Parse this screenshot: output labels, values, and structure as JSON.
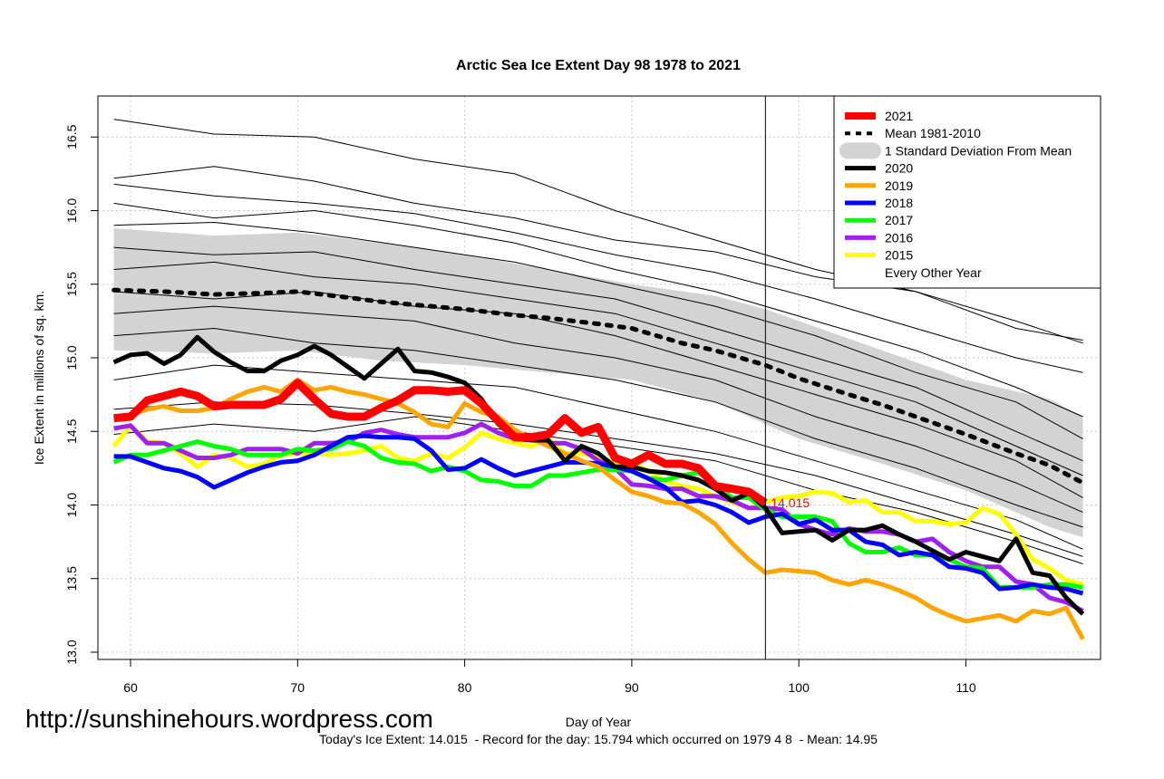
{
  "chart_data": {
    "type": "line",
    "title": "Arctic Sea Ice Extent Day 98 1978 to 2021",
    "xlabel": "Day of Year",
    "ylabel": "Ice Extent in millions of sq. km.",
    "xlim": [
      58,
      118
    ],
    "ylim": [
      12.95,
      16.78
    ],
    "xticks": [
      60,
      70,
      80,
      90,
      100,
      110
    ],
    "yticks": [
      "13.0",
      "13.5",
      "14.0",
      "14.5",
      "15.0",
      "15.5",
      "16.0",
      "16.5"
    ],
    "grid": true,
    "legend_position": "top-right",
    "marker_day": 98,
    "current_value_label": "14.015",
    "days": [
      59,
      60,
      61,
      62,
      63,
      64,
      65,
      66,
      67,
      68,
      69,
      70,
      71,
      72,
      73,
      74,
      75,
      76,
      77,
      78,
      79,
      80,
      81,
      82,
      83,
      84,
      85,
      86,
      87,
      88,
      89,
      90,
      91,
      92,
      93,
      94,
      95,
      96,
      97,
      98,
      99,
      100,
      101,
      102,
      103,
      104,
      105,
      106,
      107,
      108,
      109,
      110,
      111,
      112,
      113,
      114,
      115,
      116,
      117
    ],
    "sd_band": {
      "name": "1 Standard Deviation From Mean",
      "color": "#d3d3d3",
      "days": [
        59,
        65,
        70,
        75,
        80,
        85,
        90,
        95,
        98,
        100,
        105,
        110,
        115,
        117
      ],
      "upper": [
        15.88,
        15.83,
        15.85,
        15.78,
        15.7,
        15.6,
        15.5,
        15.42,
        15.33,
        15.25,
        15.05,
        14.85,
        14.72,
        14.6
      ],
      "lower": [
        15.05,
        15.03,
        15.05,
        14.98,
        14.95,
        14.9,
        14.85,
        14.7,
        14.55,
        14.45,
        14.28,
        14.1,
        13.85,
        13.78
      ]
    },
    "mean": {
      "name": "Mean 1981-2010",
      "color": "#000000",
      "days": [
        59,
        62,
        65,
        68,
        70,
        73,
        75,
        78,
        80,
        83,
        85,
        88,
        90,
        93,
        95,
        98,
        100,
        103,
        105,
        108,
        110,
        113,
        115,
        117
      ],
      "values": [
        15.46,
        15.45,
        15.43,
        15.44,
        15.45,
        15.41,
        15.38,
        15.35,
        15.33,
        15.29,
        15.27,
        15.23,
        15.2,
        15.1,
        15.05,
        14.95,
        14.86,
        14.75,
        14.68,
        14.56,
        14.48,
        14.35,
        14.27,
        14.15
      ]
    },
    "series": [
      {
        "name": "2021",
        "color": "#ff0000",
        "width": 9,
        "values": [
          14.59,
          14.6,
          14.71,
          14.74,
          14.77,
          14.74,
          14.67,
          14.68,
          14.68,
          14.68,
          14.72,
          14.83,
          14.72,
          14.62,
          14.6,
          14.6,
          14.66,
          14.71,
          14.78,
          14.78,
          14.77,
          14.78,
          14.69,
          14.57,
          14.46,
          14.46,
          14.48,
          14.59,
          14.49,
          14.53,
          14.32,
          14.28,
          14.34,
          14.28,
          14.28,
          14.25,
          14.13,
          14.11,
          14.09,
          14.015
        ]
      },
      {
        "name": "2020",
        "color": "#000000",
        "width": 5,
        "values": [
          14.97,
          15.02,
          15.03,
          14.96,
          15.02,
          15.14,
          15.04,
          14.97,
          14.91,
          14.91,
          14.98,
          15.02,
          15.08,
          15.02,
          14.94,
          14.86,
          14.96,
          15.06,
          14.91,
          14.9,
          14.87,
          14.83,
          14.72,
          14.55,
          14.45,
          14.44,
          14.44,
          14.3,
          14.4,
          14.35,
          14.26,
          14.26,
          14.23,
          14.22,
          14.2,
          14.17,
          14.11,
          14.03,
          14.08,
          13.98,
          13.81,
          13.82,
          13.83,
          13.76,
          13.83,
          13.83,
          13.86,
          13.8,
          13.75,
          13.69,
          13.63,
          13.68,
          13.65,
          13.62,
          13.77,
          13.54,
          13.52,
          13.37,
          13.26
        ]
      },
      {
        "name": "2019",
        "color": "#ffa500",
        "width": 5,
        "values": [
          14.59,
          14.61,
          14.65,
          14.67,
          14.64,
          14.64,
          14.66,
          14.72,
          14.77,
          14.8,
          14.77,
          14.85,
          14.78,
          14.8,
          14.77,
          14.75,
          14.72,
          14.69,
          14.63,
          14.55,
          14.53,
          14.69,
          14.63,
          14.6,
          14.51,
          14.45,
          14.4,
          14.35,
          14.3,
          14.26,
          14.17,
          14.09,
          14.06,
          14.02,
          14.01,
          13.95,
          13.87,
          13.74,
          13.63,
          13.54,
          13.56,
          13.55,
          13.54,
          13.49,
          13.46,
          13.49,
          13.46,
          13.42,
          13.37,
          13.3,
          13.25,
          13.21,
          13.23,
          13.25,
          13.21,
          13.28,
          13.26,
          13.3,
          13.09
        ]
      },
      {
        "name": "2018",
        "color": "#0000ff",
        "width": 5,
        "values": [
          14.33,
          14.33,
          14.29,
          14.25,
          14.23,
          14.19,
          14.12,
          14.17,
          14.22,
          14.26,
          14.29,
          14.3,
          14.34,
          14.4,
          14.46,
          14.47,
          14.46,
          14.46,
          14.45,
          14.37,
          14.24,
          14.25,
          14.31,
          14.25,
          14.2,
          14.23,
          14.26,
          14.29,
          14.29,
          14.28,
          14.26,
          14.23,
          14.18,
          14.12,
          14.02,
          14.03,
          14.0,
          13.95,
          13.88,
          13.92,
          13.94,
          13.87,
          13.9,
          13.83,
          13.83,
          13.75,
          13.73,
          13.66,
          13.68,
          13.66,
          13.58,
          13.57,
          13.54,
          13.43,
          13.44,
          13.46,
          13.44,
          13.43,
          13.4
        ]
      },
      {
        "name": "2017",
        "color": "#00ff00",
        "width": 5,
        "values": [
          14.29,
          14.34,
          14.34,
          14.37,
          14.4,
          14.43,
          14.4,
          14.38,
          14.34,
          14.34,
          14.34,
          14.38,
          14.37,
          14.38,
          14.43,
          14.4,
          14.32,
          14.29,
          14.28,
          14.23,
          14.26,
          14.23,
          14.17,
          14.16,
          14.13,
          14.13,
          14.2,
          14.2,
          14.22,
          14.24,
          14.24,
          14.23,
          14.18,
          14.17,
          14.2,
          14.22,
          14.14,
          14.05,
          14.05,
          13.97,
          13.92,
          13.92,
          13.92,
          13.89,
          13.74,
          13.68,
          13.68,
          13.71,
          13.66,
          13.66,
          13.63,
          13.58,
          13.57,
          13.44,
          13.44,
          13.44,
          13.46,
          13.46,
          13.44
        ]
      },
      {
        "name": "2016",
        "color": "#a020f0",
        "width": 5,
        "values": [
          14.52,
          14.54,
          14.42,
          14.42,
          14.37,
          14.32,
          14.32,
          14.34,
          14.38,
          14.38,
          14.38,
          14.35,
          14.42,
          14.42,
          14.43,
          14.49,
          14.51,
          14.48,
          14.46,
          14.46,
          14.46,
          14.49,
          14.55,
          14.49,
          14.45,
          14.45,
          14.42,
          14.42,
          14.38,
          14.3,
          14.25,
          14.14,
          14.13,
          14.11,
          14.11,
          14.06,
          14.06,
          14.03,
          13.98,
          13.98,
          13.97,
          13.87,
          13.83,
          13.8,
          13.84,
          13.82,
          13.82,
          13.8,
          13.75,
          13.77,
          13.68,
          13.62,
          13.58,
          13.58,
          13.48,
          13.46,
          13.37,
          13.34,
          13.28
        ]
      },
      {
        "name": "2015",
        "color": "#ffff00",
        "width": 5,
        "values": [
          14.4,
          14.54,
          14.43,
          14.42,
          14.35,
          14.26,
          14.34,
          14.32,
          14.26,
          14.28,
          14.34,
          14.35,
          14.35,
          14.34,
          14.35,
          14.37,
          14.4,
          14.32,
          14.3,
          14.35,
          14.32,
          14.39,
          14.49,
          14.45,
          14.42,
          14.4,
          14.45,
          14.35,
          14.35,
          14.32,
          14.29,
          14.29,
          14.23,
          14.16,
          14.13,
          14.11,
          14.06,
          14.02,
          13.98,
          14.02,
          14.05,
          14.06,
          14.09,
          14.08,
          14.02,
          14.03,
          13.95,
          13.95,
          13.89,
          13.89,
          13.87,
          13.88,
          13.98,
          13.94,
          13.8,
          13.63,
          13.57,
          13.49,
          13.46
        ]
      }
    ],
    "other_years": {
      "name": "Every Other Year",
      "color": "#000000",
      "days": [
        59,
        65,
        71,
        77,
        83,
        89,
        95,
        101,
        107,
        113,
        117
      ],
      "lines": [
        [
          16.22,
          16.3,
          16.2,
          16.05,
          15.95,
          15.8,
          15.72,
          15.55,
          15.45,
          15.25,
          15.1
        ],
        [
          16.62,
          16.52,
          16.5,
          16.35,
          16.25,
          16.0,
          15.8,
          15.6,
          15.45,
          15.2,
          15.12
        ],
        [
          16.18,
          16.1,
          16.05,
          15.98,
          15.85,
          15.7,
          15.58,
          15.4,
          15.2,
          15.0,
          14.9
        ],
        [
          16.05,
          15.95,
          16.0,
          15.9,
          15.78,
          15.6,
          15.45,
          15.25,
          15.05,
          14.8,
          14.6
        ],
        [
          15.9,
          15.92,
          15.85,
          15.75,
          15.65,
          15.5,
          15.35,
          15.15,
          14.9,
          14.7,
          14.45
        ],
        [
          15.75,
          15.7,
          15.72,
          15.6,
          15.5,
          15.4,
          15.2,
          15.0,
          14.8,
          14.5,
          14.3
        ],
        [
          15.6,
          15.65,
          15.55,
          15.5,
          15.4,
          15.3,
          15.1,
          14.9,
          14.7,
          14.4,
          14.2
        ],
        [
          15.45,
          15.4,
          15.45,
          15.35,
          15.3,
          15.15,
          14.95,
          14.75,
          14.55,
          14.3,
          14.05
        ],
        [
          15.3,
          15.35,
          15.3,
          15.25,
          15.1,
          15.0,
          14.85,
          14.6,
          14.4,
          14.15,
          13.95
        ],
        [
          15.15,
          15.2,
          15.1,
          15.05,
          14.95,
          14.85,
          14.7,
          14.45,
          14.25,
          14.0,
          13.85
        ],
        [
          14.85,
          14.95,
          14.9,
          14.85,
          14.8,
          14.65,
          14.5,
          14.3,
          14.1,
          13.9,
          13.7
        ],
        [
          14.65,
          14.7,
          14.68,
          14.62,
          14.55,
          14.45,
          14.35,
          14.2,
          14.0,
          13.8,
          13.65
        ],
        [
          14.48,
          14.55,
          14.5,
          14.6,
          14.5,
          14.4,
          14.3,
          14.1,
          13.95,
          13.75,
          13.6
        ]
      ]
    },
    "legend": [
      {
        "label": "2021",
        "color": "#ff0000",
        "style": "thick"
      },
      {
        "label": "Mean 1981-2010",
        "color": "#000000",
        "style": "dotted"
      },
      {
        "label": "1 Standard Deviation From Mean",
        "color": "#d3d3d3",
        "style": "band"
      },
      {
        "label": "2020",
        "color": "#000000",
        "style": "solid"
      },
      {
        "label": "2019",
        "color": "#ffa500",
        "style": "solid"
      },
      {
        "label": "2018",
        "color": "#0000ff",
        "style": "solid"
      },
      {
        "label": "2017",
        "color": "#00ff00",
        "style": "solid"
      },
      {
        "label": "2016",
        "color": "#a020f0",
        "style": "solid"
      },
      {
        "label": "2015",
        "color": "#ffff00",
        "style": "solid"
      },
      {
        "label": "Every Other Year",
        "color": "#000000",
        "style": "none"
      }
    ]
  },
  "footer": {
    "summary": "Today's Ice Extent: 14.015  - Record for the day: 15.794 which occurred on 1979 4 8  - Mean: 14.95",
    "watermark": "http://sunshinehours.wordpress.com"
  }
}
